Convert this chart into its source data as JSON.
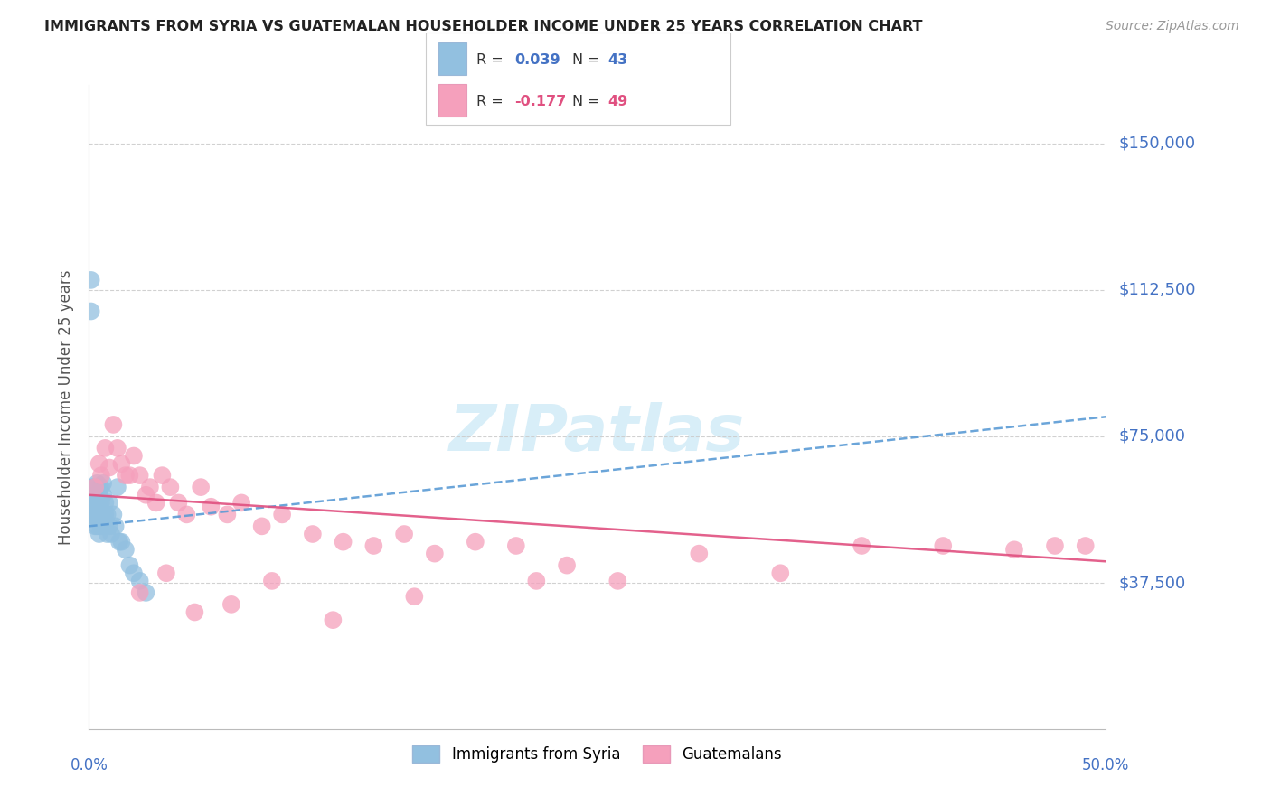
{
  "title": "IMMIGRANTS FROM SYRIA VS GUATEMALAN HOUSEHOLDER INCOME UNDER 25 YEARS CORRELATION CHART",
  "source": "Source: ZipAtlas.com",
  "ylabel": "Householder Income Under 25 years",
  "legend1_r": "R = 0.039",
  "legend1_n": "N = 43",
  "legend2_r": "R = -0.177",
  "legend2_n": "N = 49",
  "legend1_label": "Immigrants from Syria",
  "legend2_label": "Guatemalans",
  "ytick_labels": [
    "$150,000",
    "$112,500",
    "$75,000",
    "$37,500"
  ],
  "ytick_values": [
    150000,
    112500,
    75000,
    37500
  ],
  "ymax": 165000,
  "ymin": 0,
  "xmax": 0.5,
  "xmin": 0.0,
  "blue_color": "#92c0e0",
  "pink_color": "#f5a0bc",
  "blue_line_color": "#5b9bd5",
  "pink_line_color": "#e05080",
  "title_color": "#222222",
  "axis_label_color": "#4472c4",
  "watermark_color": "#d8eef8",
  "syria_x": [
    0.001,
    0.001,
    0.002,
    0.002,
    0.002,
    0.003,
    0.003,
    0.003,
    0.003,
    0.004,
    0.004,
    0.004,
    0.004,
    0.005,
    0.005,
    0.005,
    0.005,
    0.005,
    0.006,
    0.006,
    0.006,
    0.006,
    0.007,
    0.007,
    0.007,
    0.008,
    0.008,
    0.008,
    0.009,
    0.009,
    0.01,
    0.01,
    0.011,
    0.012,
    0.013,
    0.014,
    0.015,
    0.016,
    0.018,
    0.02,
    0.022,
    0.025,
    0.028
  ],
  "syria_y": [
    107000,
    115000,
    62000,
    58000,
    55000,
    60000,
    57000,
    55000,
    52000,
    63000,
    58000,
    54000,
    52000,
    62000,
    60000,
    57000,
    54000,
    50000,
    62000,
    58000,
    55000,
    52000,
    63000,
    60000,
    55000,
    58000,
    55000,
    52000,
    55000,
    50000,
    58000,
    52000,
    50000,
    55000,
    52000,
    62000,
    48000,
    48000,
    46000,
    42000,
    40000,
    38000,
    35000
  ],
  "guatemala_x": [
    0.003,
    0.005,
    0.006,
    0.008,
    0.01,
    0.012,
    0.014,
    0.016,
    0.018,
    0.02,
    0.022,
    0.025,
    0.028,
    0.03,
    0.033,
    0.036,
    0.04,
    0.044,
    0.048,
    0.055,
    0.06,
    0.068,
    0.075,
    0.085,
    0.095,
    0.11,
    0.125,
    0.14,
    0.155,
    0.17,
    0.19,
    0.21,
    0.235,
    0.26,
    0.3,
    0.34,
    0.38,
    0.42,
    0.455,
    0.475,
    0.49,
    0.025,
    0.038,
    0.052,
    0.07,
    0.09,
    0.12,
    0.16,
    0.22
  ],
  "guatemala_y": [
    62000,
    68000,
    65000,
    72000,
    67000,
    78000,
    72000,
    68000,
    65000,
    65000,
    70000,
    65000,
    60000,
    62000,
    58000,
    65000,
    62000,
    58000,
    55000,
    62000,
    57000,
    55000,
    58000,
    52000,
    55000,
    50000,
    48000,
    47000,
    50000,
    45000,
    48000,
    47000,
    42000,
    38000,
    45000,
    40000,
    47000,
    47000,
    46000,
    47000,
    47000,
    35000,
    40000,
    30000,
    32000,
    38000,
    28000,
    34000,
    38000
  ]
}
